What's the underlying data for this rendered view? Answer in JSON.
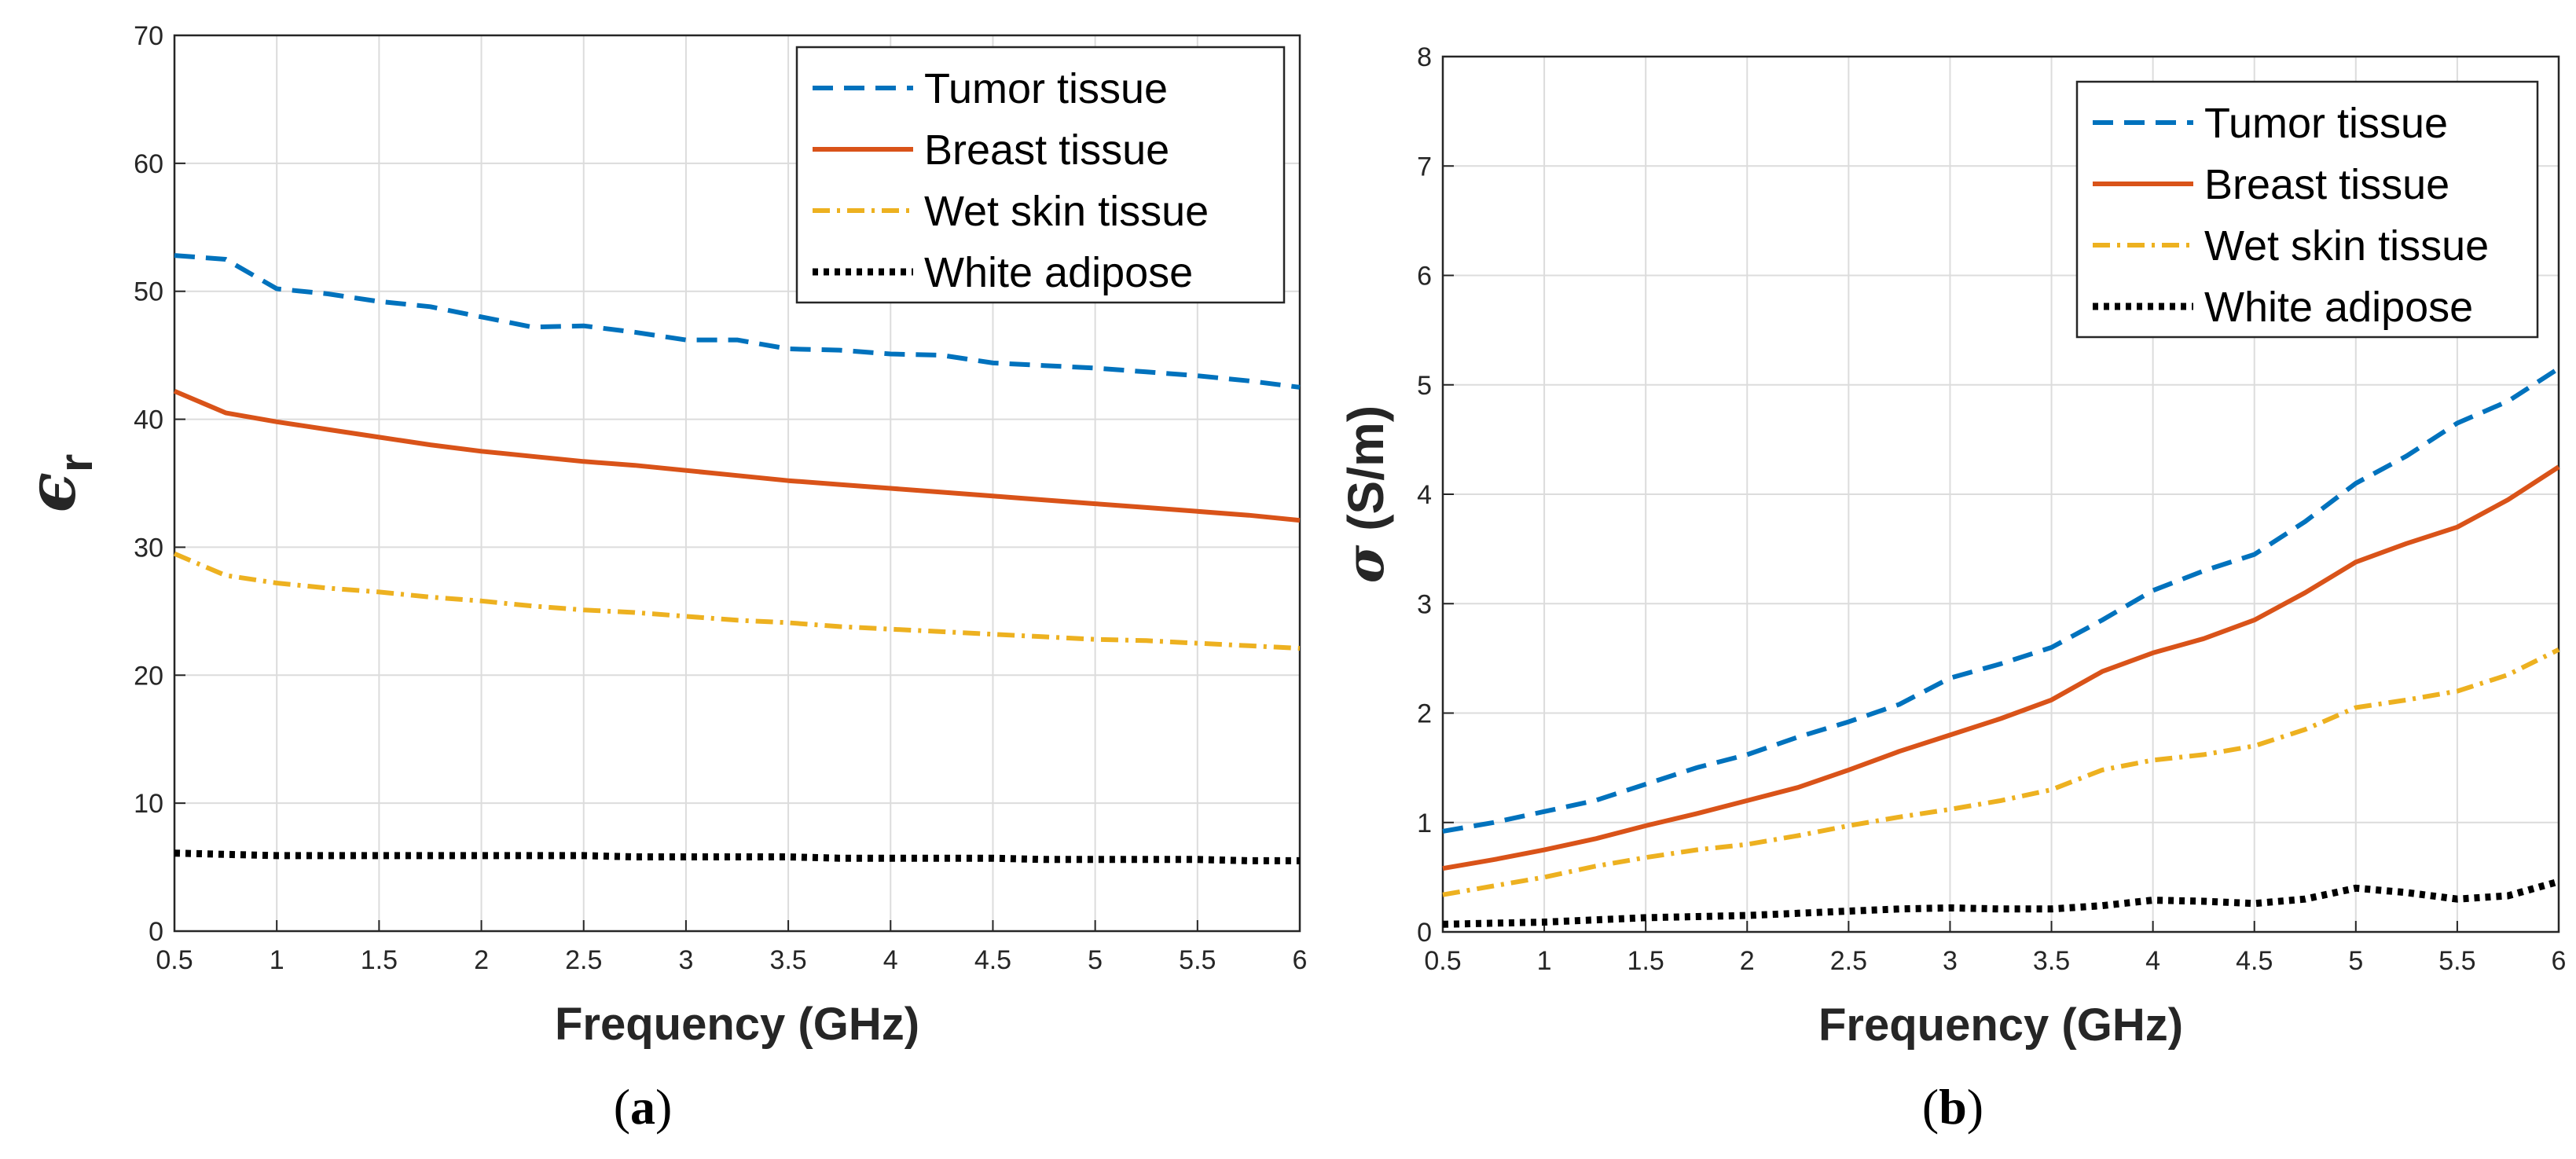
{
  "chart_data": [
    {
      "type": "line",
      "panel": "a",
      "caption_open": "(",
      "caption_letter": "a",
      "caption_close": ")",
      "title": "",
      "xlabel": "Frequency (GHz)",
      "ylabel_symbol": "ϵ",
      "ylabel_subscript": "r",
      "xlim": [
        0.5,
        6
      ],
      "ylim": [
        0,
        70
      ],
      "xticks": [
        0.5,
        1,
        1.5,
        2,
        2.5,
        3,
        3.5,
        4,
        4.5,
        5,
        5.5,
        6
      ],
      "xtick_labels": [
        "0.5",
        "1",
        "1.5",
        "2",
        "2.5",
        "3",
        "3.5",
        "4",
        "4.5",
        "5",
        "5.5",
        "6"
      ],
      "yticks": [
        0,
        10,
        20,
        30,
        40,
        50,
        60,
        70
      ],
      "ytick_labels": [
        "0",
        "10",
        "20",
        "30",
        "40",
        "50",
        "60",
        "70"
      ],
      "grid": true,
      "legend_position": "top-right",
      "x": [
        0.5,
        0.75,
        1,
        1.25,
        1.5,
        1.75,
        2,
        2.25,
        2.5,
        2.75,
        3,
        3.25,
        3.5,
        3.75,
        4,
        4.25,
        4.5,
        4.75,
        5,
        5.25,
        5.5,
        5.75,
        6
      ],
      "series": [
        {
          "name": "Tumor tissue",
          "color": "#0072BD",
          "style": "dashed",
          "values": [
            52.8,
            52.5,
            50.2,
            49.8,
            49.2,
            48.8,
            48.0,
            47.2,
            47.3,
            46.8,
            46.2,
            46.2,
            45.5,
            45.4,
            45.1,
            45.0,
            44.4,
            44.2,
            44.0,
            43.7,
            43.4,
            43.0,
            42.5
          ]
        },
        {
          "name": "Breast tissue",
          "color": "#D95319",
          "style": "solid",
          "values": [
            42.2,
            40.5,
            39.8,
            39.2,
            38.6,
            38.0,
            37.5,
            37.1,
            36.7,
            36.4,
            36.0,
            35.6,
            35.2,
            34.9,
            34.6,
            34.3,
            34.0,
            33.7,
            33.4,
            33.1,
            32.8,
            32.5,
            32.1
          ]
        },
        {
          "name": "Wet skin tissue",
          "color": "#EDB120",
          "style": "dashdot",
          "values": [
            29.5,
            27.8,
            27.2,
            26.8,
            26.5,
            26.1,
            25.8,
            25.4,
            25.1,
            24.9,
            24.6,
            24.3,
            24.1,
            23.8,
            23.6,
            23.4,
            23.2,
            23.0,
            22.8,
            22.7,
            22.5,
            22.3,
            22.1
          ]
        },
        {
          "name": "White adipose",
          "color": "#000000",
          "style": "dotted",
          "values": [
            6.1,
            6.0,
            5.9,
            5.9,
            5.9,
            5.9,
            5.9,
            5.9,
            5.9,
            5.8,
            5.8,
            5.8,
            5.8,
            5.7,
            5.7,
            5.7,
            5.7,
            5.6,
            5.6,
            5.6,
            5.6,
            5.5,
            5.5
          ]
        }
      ]
    },
    {
      "type": "line",
      "panel": "b",
      "caption_open": "(",
      "caption_letter": "b",
      "caption_close": ")",
      "title": "",
      "xlabel": "Frequency (GHz)",
      "ylabel_symbol": "σ",
      "ylabel_unit": "(S/m)",
      "xlim": [
        0.5,
        6
      ],
      "ylim": [
        0,
        8
      ],
      "xticks": [
        0.5,
        1,
        1.5,
        2,
        2.5,
        3,
        3.5,
        4,
        4.5,
        5,
        5.5,
        6
      ],
      "xtick_labels": [
        "0.5",
        "1",
        "1.5",
        "2",
        "2.5",
        "3",
        "3.5",
        "4",
        "4.5",
        "5",
        "5.5",
        "6"
      ],
      "yticks": [
        0,
        1,
        2,
        3,
        4,
        5,
        6,
        7,
        8
      ],
      "ytick_labels": [
        "0",
        "1",
        "2",
        "3",
        "4",
        "5",
        "6",
        "7",
        "8"
      ],
      "grid": true,
      "legend_position": "top-right",
      "x": [
        0.5,
        0.75,
        1,
        1.25,
        1.5,
        1.75,
        2,
        2.25,
        2.5,
        2.75,
        3,
        3.25,
        3.5,
        3.75,
        4,
        4.25,
        4.5,
        4.75,
        5,
        5.25,
        5.5,
        5.75,
        6
      ],
      "series": [
        {
          "name": "Tumor tissue",
          "color": "#0072BD",
          "style": "dashed",
          "values": [
            0.92,
            1.0,
            1.1,
            1.2,
            1.35,
            1.5,
            1.62,
            1.78,
            1.92,
            2.08,
            2.32,
            2.45,
            2.6,
            2.85,
            3.12,
            3.3,
            3.45,
            3.75,
            4.1,
            4.35,
            4.65,
            4.85,
            5.15
          ]
        },
        {
          "name": "Breast tissue",
          "color": "#D95319",
          "style": "solid",
          "values": [
            0.58,
            0.66,
            0.75,
            0.85,
            0.97,
            1.08,
            1.2,
            1.32,
            1.48,
            1.65,
            1.8,
            1.95,
            2.12,
            2.38,
            2.55,
            2.68,
            2.85,
            3.1,
            3.38,
            3.55,
            3.7,
            3.95,
            4.25
          ]
        },
        {
          "name": "Wet skin tissue",
          "color": "#EDB120",
          "style": "dashdot",
          "values": [
            0.34,
            0.42,
            0.5,
            0.6,
            0.68,
            0.75,
            0.8,
            0.88,
            0.97,
            1.05,
            1.12,
            1.2,
            1.3,
            1.48,
            1.57,
            1.62,
            1.7,
            1.85,
            2.05,
            2.12,
            2.2,
            2.35,
            2.58
          ]
        },
        {
          "name": "White adipose",
          "color": "#000000",
          "style": "dotted",
          "values": [
            0.07,
            0.08,
            0.09,
            0.11,
            0.13,
            0.14,
            0.15,
            0.17,
            0.19,
            0.21,
            0.22,
            0.21,
            0.21,
            0.24,
            0.29,
            0.28,
            0.26,
            0.3,
            0.4,
            0.36,
            0.3,
            0.33,
            0.46
          ]
        }
      ]
    }
  ]
}
